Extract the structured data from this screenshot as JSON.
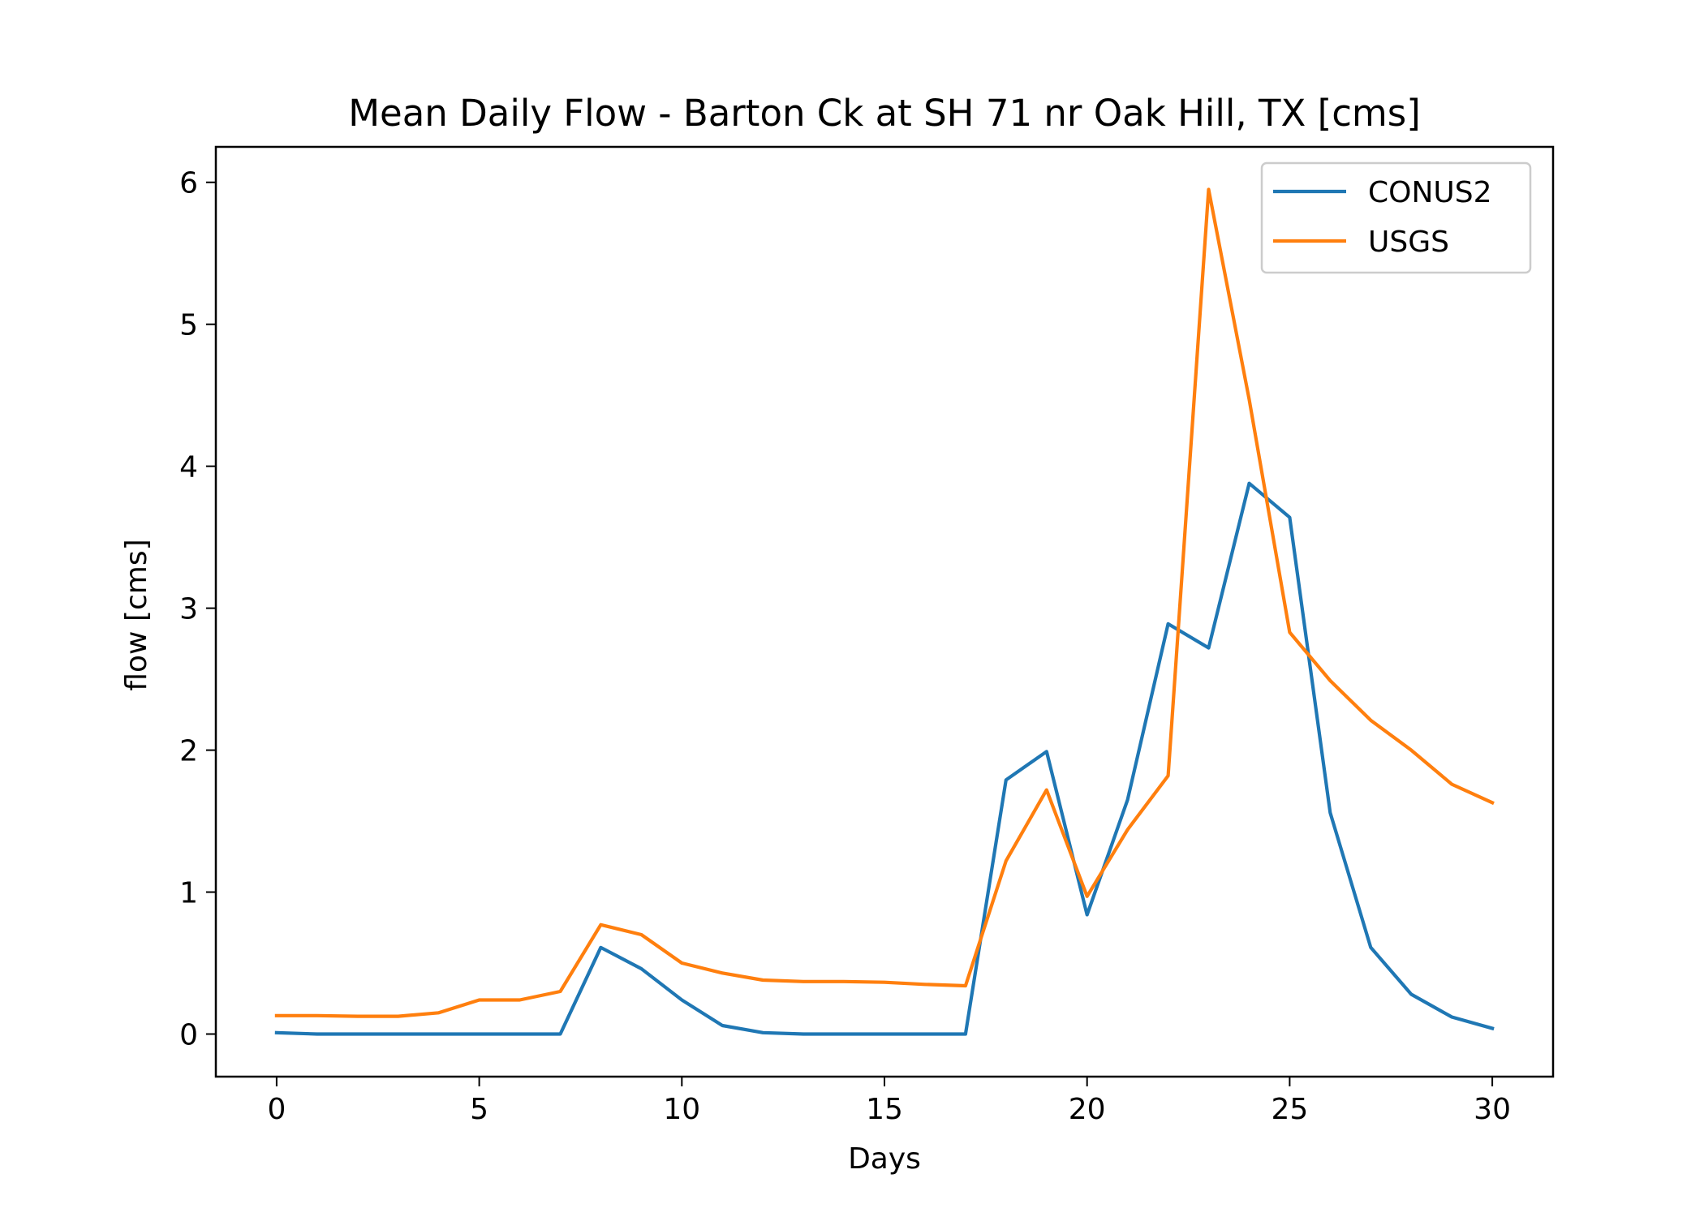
{
  "chart_data": {
    "type": "line",
    "title": "Mean Daily Flow - Barton Ck at SH 71 nr Oak Hill, TX [cms]",
    "xlabel": "Days",
    "ylabel": "flow [cms]",
    "xlim": [
      -1.5,
      31.5
    ],
    "ylim": [
      -0.3,
      6.25
    ],
    "xticks": [
      0,
      5,
      10,
      15,
      20,
      25,
      30
    ],
    "yticks": [
      0,
      1,
      2,
      3,
      4,
      5,
      6
    ],
    "legend_position": "top-right",
    "x": [
      0,
      1,
      2,
      3,
      4,
      5,
      6,
      7,
      8,
      9,
      10,
      11,
      12,
      13,
      14,
      15,
      16,
      17,
      18,
      19,
      20,
      21,
      22,
      23,
      24,
      25,
      26,
      27,
      28,
      29,
      30
    ],
    "series": [
      {
        "name": "CONUS2",
        "color": "#1f77b4",
        "values": [
          0.01,
          0.0,
          0.0,
          0.0,
          0.0,
          0.0,
          0.0,
          0.0,
          0.61,
          0.46,
          0.24,
          0.06,
          0.01,
          0.0,
          0.0,
          0.0,
          0.0,
          0.0,
          1.79,
          1.99,
          0.84,
          1.65,
          2.89,
          2.72,
          3.88,
          3.64,
          1.56,
          0.61,
          0.28,
          0.12,
          0.04
        ]
      },
      {
        "name": "USGS",
        "color": "#ff7f0e",
        "values": [
          0.13,
          0.13,
          0.125,
          0.125,
          0.15,
          0.24,
          0.24,
          0.3,
          0.77,
          0.7,
          0.5,
          0.43,
          0.38,
          0.37,
          0.37,
          0.365,
          0.35,
          0.34,
          1.22,
          1.72,
          0.97,
          1.44,
          1.82,
          5.95,
          4.47,
          2.83,
          2.49,
          2.21,
          2.0,
          1.76,
          1.63
        ]
      }
    ]
  }
}
